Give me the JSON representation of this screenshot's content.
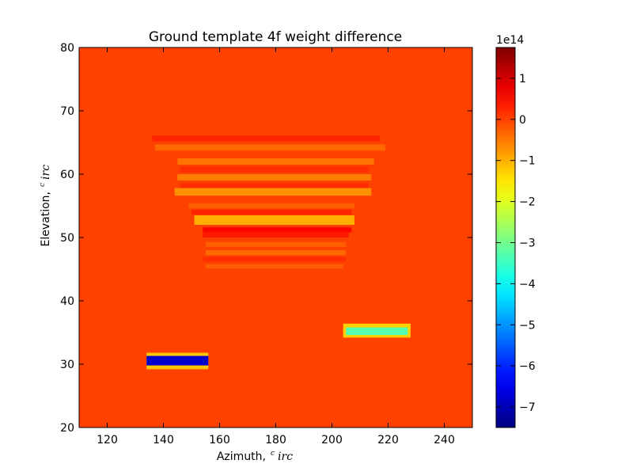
{
  "chart_data": {
    "type": "heatmap",
    "title": "Ground template 4f weight difference",
    "xlabel": "Azimuth,",
    "ylabel": "Elevation,",
    "unit_symbol": "c irc",
    "xlim": [
      110,
      250
    ],
    "ylim": [
      20,
      80
    ],
    "xticks": [
      "120",
      "140",
      "160",
      "180",
      "200",
      "220",
      "240"
    ],
    "yticks": [
      "20",
      "30",
      "40",
      "50",
      "60",
      "70",
      "80"
    ],
    "colorbar": {
      "multiplier": "1e14",
      "range": [
        -7.5,
        1.75
      ],
      "ticks": [
        "1",
        "0",
        "−1",
        "−2",
        "−3",
        "−4",
        "−5",
        "−6",
        "−7"
      ],
      "colormap": "jet"
    },
    "background_value": 0,
    "regions": [
      {
        "x": [
          134,
          156
        ],
        "y": [
          29.2,
          31.8
        ],
        "value": -1.2
      },
      {
        "x": [
          134,
          156
        ],
        "y": [
          29.8,
          31.3
        ],
        "value": -6.8
      },
      {
        "x": [
          204,
          228
        ],
        "y": [
          34.2,
          36.4
        ],
        "value": -1.3
      },
      {
        "x": [
          205,
          227
        ],
        "y": [
          34.6,
          35.8
        ],
        "value": -3.3
      }
    ],
    "stripes": [
      {
        "x": [
          136,
          217
        ],
        "y": [
          65.2,
          66.1
        ],
        "value": 0.3
      },
      {
        "x": [
          137,
          219
        ],
        "y": [
          63.7,
          64.7
        ],
        "value": -0.4
      },
      {
        "x": [
          145,
          215
        ],
        "y": [
          61.5,
          62.5
        ],
        "value": -0.5
      },
      {
        "x": [
          146,
          213
        ],
        "y": [
          60.3,
          61.2
        ],
        "value": 0.2
      },
      {
        "x": [
          145,
          214
        ],
        "y": [
          59.0,
          60.0
        ],
        "value": -0.6
      },
      {
        "x": [
          146,
          213
        ],
        "y": [
          57.8,
          58.6
        ],
        "value": 0.2
      },
      {
        "x": [
          144,
          214
        ],
        "y": [
          56.6,
          57.8
        ],
        "value": -0.8
      },
      {
        "x": [
          149,
          208
        ],
        "y": [
          54.6,
          55.4
        ],
        "value": -0.3
      },
      {
        "x": [
          150,
          207
        ],
        "y": [
          53.6,
          54.4
        ],
        "value": 0.3
      },
      {
        "x": [
          151,
          208
        ],
        "y": [
          52.0,
          53.5
        ],
        "value": -1.1
      },
      {
        "x": [
          154,
          207
        ],
        "y": [
          50.8,
          51.6
        ],
        "value": 0.6
      },
      {
        "x": [
          154,
          206
        ],
        "y": [
          50.0,
          50.8
        ],
        "value": 0.4
      },
      {
        "x": [
          155,
          205
        ],
        "y": [
          48.5,
          49.3
        ],
        "value": -0.3
      },
      {
        "x": [
          155,
          205
        ],
        "y": [
          47.2,
          48.0
        ],
        "value": -0.4
      },
      {
        "x": [
          154,
          205
        ],
        "y": [
          46.2,
          46.9
        ],
        "value": 0.2
      },
      {
        "x": [
          155,
          204
        ],
        "y": [
          45.1,
          45.8
        ],
        "value": -0.3
      }
    ]
  }
}
